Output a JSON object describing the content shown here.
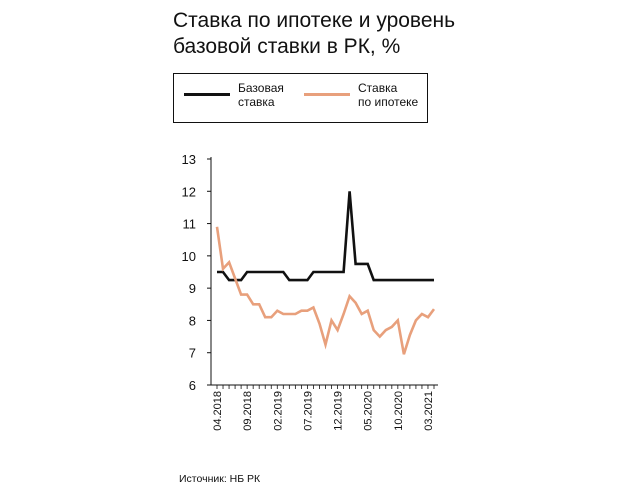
{
  "title": "Ставка по ипотеке и уровень\nбазовой ставки в РК, %",
  "legend": [
    {
      "label": "Базовая\nставка",
      "color": "#111111"
    },
    {
      "label": "Ставка\nпо ипотеке",
      "color": "#e8a07c"
    }
  ],
  "source": "Источник: НБ РК",
  "chart_data": {
    "type": "line",
    "ylim": [
      6,
      13
    ],
    "yticks": [
      6,
      7,
      8,
      9,
      10,
      11,
      12,
      13
    ],
    "x_tick_labels": [
      "04.2018",
      "09.2018",
      "02.2019",
      "07.2019",
      "12.2019",
      "05.2020",
      "10.2020",
      "03.2021"
    ],
    "x_tick_indices": [
      0,
      5,
      10,
      15,
      20,
      25,
      30,
      35
    ],
    "grid": false,
    "series": [
      {
        "name": "Базовая ставка",
        "color": "#111111",
        "values": [
          9.5,
          9.5,
          9.25,
          9.25,
          9.25,
          9.5,
          9.5,
          9.5,
          9.5,
          9.5,
          9.5,
          9.5,
          9.25,
          9.25,
          9.25,
          9.25,
          9.5,
          9.5,
          9.5,
          9.5,
          9.5,
          9.5,
          12.0,
          9.75,
          9.75,
          9.75,
          9.25,
          9.25,
          9.25,
          9.25,
          9.25,
          9.25,
          9.25,
          9.25,
          9.25,
          9.25,
          9.25
        ]
      },
      {
        "name": "Ставка по ипотеке",
        "color": "#e8a07c",
        "values": [
          10.9,
          9.6,
          9.8,
          9.3,
          8.8,
          8.8,
          8.5,
          8.5,
          8.1,
          8.1,
          8.3,
          8.2,
          8.2,
          8.2,
          8.3,
          8.3,
          8.4,
          7.9,
          7.25,
          8.0,
          7.7,
          8.2,
          8.75,
          8.55,
          8.2,
          8.3,
          7.7,
          7.5,
          7.7,
          7.8,
          8.0,
          6.95,
          7.55,
          8.0,
          8.2,
          8.1,
          8.35
        ]
      }
    ]
  }
}
